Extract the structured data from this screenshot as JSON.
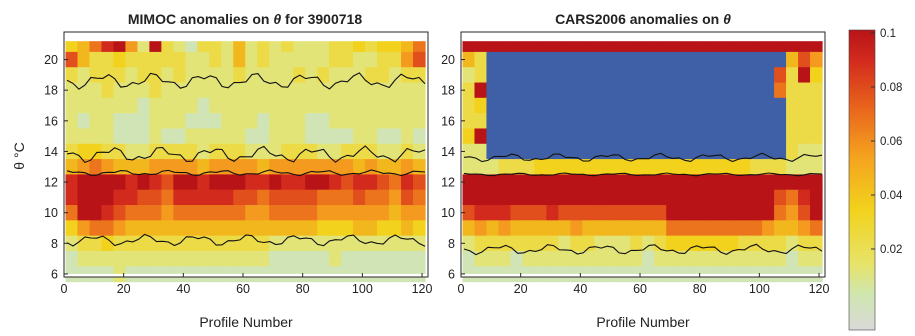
{
  "chart_data": [
    {
      "type": "heatmap",
      "title_prefix": "MIMOC anomalies on",
      "title_symbol": "θ",
      "title_suffix": "for 3900718",
      "xlabel": "Profile Number",
      "ylabel": "θ °C",
      "xlim": [
        0,
        122
      ],
      "ylim": [
        5.8,
        21.8
      ],
      "xticks": [
        "0",
        "20",
        "40",
        "60",
        "80",
        "100",
        "120"
      ],
      "yticks": [
        "6",
        "8",
        "10",
        "12",
        "14",
        "16",
        "18",
        "20"
      ],
      "field_rows_theta": [
        21,
        20,
        19,
        18,
        17,
        16,
        15,
        14,
        13,
        12,
        11,
        10,
        9,
        8,
        7,
        6
      ],
      "field_note": "values are anomaly magnitudes (color scale 0 to 0.1); rows listed from top (θ≈21) to bottom (θ≈6), columns every ~4 profiles",
      "field_values": [
        [
          0.04,
          0.05,
          0.07,
          0.09,
          0.1,
          0.06,
          0.02,
          0.1,
          0.03,
          0.02,
          0.01,
          0.03,
          0.03,
          0.02,
          0.05,
          0.02,
          0.03,
          0.02,
          0.03,
          0.02,
          0.02,
          0.02,
          0.03,
          0.03,
          0.04,
          0.03,
          0.04,
          0.04,
          0.05,
          0.07
        ],
        [
          0.08,
          0.05,
          0.03,
          0.03,
          0.04,
          0.03,
          0.03,
          0.03,
          0.03,
          0.03,
          0.02,
          0.02,
          0.03,
          0.02,
          0.05,
          0.02,
          0.03,
          0.02,
          0.02,
          0.02,
          0.02,
          0.02,
          0.03,
          0.03,
          0.02,
          0.02,
          0.03,
          0.03,
          0.06,
          0.08
        ],
        [
          0.03,
          0.02,
          0.03,
          0.03,
          0.03,
          0.02,
          0.03,
          0.03,
          0.02,
          0.03,
          0.02,
          0.02,
          0.02,
          0.02,
          0.03,
          0.02,
          0.02,
          0.02,
          0.02,
          0.03,
          0.02,
          0.03,
          0.02,
          0.02,
          0.02,
          0.03,
          0.03,
          0.02,
          0.03,
          0.03
        ],
        [
          0.02,
          0.02,
          0.02,
          0.03,
          0.02,
          0.02,
          0.02,
          0.03,
          0.02,
          0.02,
          0.02,
          0.02,
          0.02,
          0.02,
          0.02,
          0.02,
          0.02,
          0.02,
          0.02,
          0.02,
          0.02,
          0.02,
          0.02,
          0.02,
          0.02,
          0.02,
          0.02,
          0.02,
          0.02,
          0.02
        ],
        [
          0.02,
          0.02,
          0.02,
          0.02,
          0.02,
          0.02,
          0.01,
          0.02,
          0.02,
          0.02,
          0.02,
          0.01,
          0.02,
          0.02,
          0.02,
          0.02,
          0.02,
          0.02,
          0.02,
          0.02,
          0.02,
          0.02,
          0.02,
          0.02,
          0.02,
          0.02,
          0.02,
          0.02,
          0.02,
          0.02
        ],
        [
          0.02,
          0.01,
          0.02,
          0.02,
          0.01,
          0.01,
          0.01,
          0.02,
          0.02,
          0.02,
          0.01,
          0.01,
          0.01,
          0.02,
          0.02,
          0.02,
          0.01,
          0.02,
          0.02,
          0.02,
          0.01,
          0.01,
          0.02,
          0.02,
          0.02,
          0.02,
          0.02,
          0.02,
          0.02,
          0.02
        ],
        [
          0.02,
          0.02,
          0.02,
          0.02,
          0.01,
          0.01,
          0.01,
          0.02,
          0.01,
          0.01,
          0.02,
          0.02,
          0.02,
          0.02,
          0.02,
          0.01,
          0.01,
          0.02,
          0.02,
          0.02,
          0.01,
          0.01,
          0.01,
          0.01,
          0.02,
          0.02,
          0.01,
          0.01,
          0.02,
          0.01
        ],
        [
          0.03,
          0.04,
          0.04,
          0.03,
          0.03,
          0.02,
          0.02,
          0.03,
          0.03,
          0.03,
          0.03,
          0.02,
          0.03,
          0.03,
          0.03,
          0.02,
          0.02,
          0.02,
          0.03,
          0.03,
          0.03,
          0.02,
          0.02,
          0.03,
          0.03,
          0.03,
          0.02,
          0.02,
          0.03,
          0.02
        ],
        [
          0.05,
          0.06,
          0.07,
          0.06,
          0.05,
          0.05,
          0.05,
          0.06,
          0.06,
          0.06,
          0.06,
          0.05,
          0.06,
          0.06,
          0.06,
          0.06,
          0.05,
          0.06,
          0.06,
          0.06,
          0.06,
          0.06,
          0.06,
          0.06,
          0.05,
          0.06,
          0.05,
          0.05,
          0.06,
          0.05
        ],
        [
          0.09,
          0.1,
          0.1,
          0.1,
          0.1,
          0.09,
          0.1,
          0.09,
          0.08,
          0.1,
          0.1,
          0.09,
          0.1,
          0.1,
          0.1,
          0.09,
          0.09,
          0.1,
          0.09,
          0.09,
          0.1,
          0.1,
          0.09,
          0.08,
          0.09,
          0.09,
          0.08,
          0.07,
          0.09,
          0.08
        ],
        [
          0.09,
          0.1,
          0.1,
          0.1,
          0.09,
          0.09,
          0.08,
          0.08,
          0.07,
          0.09,
          0.09,
          0.09,
          0.09,
          0.09,
          0.08,
          0.08,
          0.07,
          0.08,
          0.08,
          0.08,
          0.08,
          0.07,
          0.07,
          0.07,
          0.08,
          0.07,
          0.07,
          0.06,
          0.08,
          0.07
        ],
        [
          0.07,
          0.1,
          0.1,
          0.09,
          0.08,
          0.07,
          0.07,
          0.07,
          0.06,
          0.07,
          0.07,
          0.07,
          0.07,
          0.07,
          0.07,
          0.06,
          0.06,
          0.07,
          0.07,
          0.07,
          0.07,
          0.06,
          0.06,
          0.06,
          0.06,
          0.06,
          0.06,
          0.05,
          0.06,
          0.06
        ],
        [
          0.04,
          0.06,
          0.07,
          0.07,
          0.06,
          0.05,
          0.05,
          0.05,
          0.05,
          0.05,
          0.05,
          0.05,
          0.05,
          0.05,
          0.05,
          0.05,
          0.05,
          0.05,
          0.05,
          0.05,
          0.05,
          0.04,
          0.04,
          0.04,
          0.05,
          0.05,
          0.04,
          0.04,
          0.05,
          0.04
        ],
        [
          0.02,
          0.03,
          0.03,
          0.04,
          0.03,
          0.03,
          0.03,
          0.03,
          0.03,
          0.03,
          0.03,
          0.03,
          0.03,
          0.03,
          0.03,
          0.03,
          0.03,
          0.02,
          0.02,
          0.02,
          0.02,
          0.02,
          0.02,
          0.02,
          0.02,
          0.02,
          0.02,
          0.02,
          0.02,
          0.02
        ],
        [
          0.01,
          0.02,
          0.02,
          0.02,
          0.02,
          0.02,
          0.02,
          0.02,
          0.02,
          0.02,
          0.02,
          0.02,
          0.02,
          0.02,
          0.02,
          0.02,
          0.02,
          0.01,
          0.01,
          0.01,
          0.01,
          0.01,
          0.02,
          0.01,
          0.01,
          0.01,
          0.01,
          0.01,
          0.01,
          0.01
        ],
        [
          0.01,
          0.01,
          0.01,
          0.01,
          0.02,
          0.01,
          0.01,
          0.01,
          0.01,
          0.01,
          0.01,
          0.01,
          0.01,
          0.01,
          0.01,
          0.01,
          0.01,
          0.01,
          0.01,
          0.01,
          0.01,
          0.01,
          0.01,
          0.01,
          0.01,
          0.01,
          0.01,
          0.01,
          0.01,
          0.01
        ]
      ]
    },
    {
      "type": "heatmap",
      "title_prefix": "CARS2006 anomalies on",
      "title_symbol": "θ",
      "title_suffix": "",
      "xlabel": "Profile Number",
      "xlim": [
        0,
        122
      ],
      "ylim": [
        5.8,
        21.8
      ],
      "xticks": [
        "0",
        "20",
        "40",
        "60",
        "80",
        "100",
        "120"
      ],
      "yticks": [
        "6",
        "8",
        "10",
        "12",
        "14",
        "16",
        "18",
        "20"
      ],
      "field_rows_theta": [
        21,
        20,
        19,
        18,
        17,
        16,
        15,
        14,
        13,
        12,
        11,
        10,
        9,
        8,
        7,
        6
      ],
      "field_note": "values are anomaly magnitudes (color scale 0 to 0.1); rows listed from top (θ≈21) to bottom (θ≈6), columns every ~4 profiles",
      "field_values": [
        [
          0.1,
          0.1,
          0.1,
          0.1,
          0.1,
          0.1,
          0.1,
          0.1,
          0.1,
          0.1,
          0.1,
          0.1,
          0.1,
          0.1,
          0.1,
          0.1,
          0.1,
          0.1,
          0.1,
          0.1,
          0.1,
          0.1,
          0.1,
          0.1,
          0.1,
          0.1,
          0.1,
          0.1,
          0.1,
          0.1
        ],
        [
          0.05,
          0.03,
          0.1,
          0.1,
          0.1,
          0.1,
          0.1,
          0.1,
          0.1,
          0.1,
          0.1,
          0.1,
          0.1,
          0.1,
          0.1,
          0.1,
          0.1,
          0.1,
          0.1,
          0.1,
          0.1,
          0.1,
          0.1,
          0.1,
          0.1,
          0.1,
          0.1,
          0.05,
          0.08,
          0.06
        ],
        [
          0.02,
          0.03,
          0.1,
          0.1,
          0.1,
          0.1,
          0.1,
          0.1,
          0.1,
          0.1,
          0.1,
          0.1,
          0.1,
          0.1,
          0.1,
          0.1,
          0.1,
          0.1,
          0.1,
          0.1,
          0.1,
          0.1,
          0.1,
          0.1,
          0.1,
          0.1,
          0.08,
          0.03,
          0.1,
          0.04
        ],
        [
          0.03,
          0.1,
          0.1,
          0.1,
          0.1,
          0.1,
          0.1,
          0.1,
          0.1,
          0.1,
          0.1,
          0.1,
          0.1,
          0.1,
          0.1,
          0.1,
          0.1,
          0.1,
          0.1,
          0.1,
          0.1,
          0.1,
          0.1,
          0.1,
          0.1,
          0.1,
          0.07,
          0.03,
          0.03,
          0.03
        ],
        [
          0.03,
          0.04,
          0.1,
          0.1,
          0.1,
          0.1,
          0.1,
          0.1,
          0.1,
          0.1,
          0.1,
          0.1,
          0.1,
          0.1,
          0.1,
          0.1,
          0.1,
          0.1,
          0.1,
          0.1,
          0.1,
          0.1,
          0.1,
          0.1,
          0.1,
          0.1,
          0.1,
          0.03,
          0.03,
          0.03
        ],
        [
          0.03,
          0.03,
          0.1,
          0.1,
          0.1,
          0.1,
          0.1,
          0.1,
          0.1,
          0.1,
          0.1,
          0.1,
          0.1,
          0.1,
          0.1,
          0.1,
          0.1,
          0.1,
          0.1,
          0.1,
          0.1,
          0.1,
          0.1,
          0.1,
          0.1,
          0.1,
          0.1,
          0.03,
          0.03,
          0.03
        ],
        [
          0.04,
          0.1,
          0.1,
          0.1,
          0.1,
          0.1,
          0.1,
          0.1,
          0.1,
          0.1,
          0.1,
          0.1,
          0.1,
          0.1,
          0.1,
          0.1,
          0.1,
          0.1,
          0.1,
          0.1,
          0.1,
          0.1,
          0.1,
          0.1,
          0.1,
          0.1,
          0.1,
          0.03,
          0.03,
          0.03
        ],
        [
          0.02,
          0.02,
          0.1,
          0.1,
          0.1,
          0.1,
          0.1,
          0.1,
          0.1,
          0.1,
          0.1,
          0.1,
          0.1,
          0.1,
          0.1,
          0.1,
          0.1,
          0.1,
          0.1,
          0.1,
          0.1,
          0.1,
          0.1,
          0.1,
          0.1,
          0.1,
          0.1,
          0.03,
          0.02,
          0.02
        ],
        [
          0.02,
          0.02,
          0.02,
          0.03,
          0.03,
          0.03,
          0.04,
          0.04,
          0.04,
          0.04,
          0.04,
          0.04,
          0.04,
          0.04,
          0.04,
          0.04,
          0.04,
          0.04,
          0.04,
          0.04,
          0.04,
          0.04,
          0.04,
          0.04,
          0.03,
          0.03,
          0.03,
          0.02,
          0.02,
          0.02
        ],
        [
          0.1,
          0.1,
          0.1,
          0.1,
          0.1,
          0.1,
          0.1,
          0.1,
          0.1,
          0.1,
          0.1,
          0.1,
          0.1,
          0.1,
          0.1,
          0.1,
          0.1,
          0.1,
          0.1,
          0.1,
          0.1,
          0.1,
          0.1,
          0.1,
          0.1,
          0.1,
          0.1,
          0.1,
          0.1,
          0.1
        ],
        [
          0.1,
          0.1,
          0.1,
          0.1,
          0.1,
          0.1,
          0.1,
          0.1,
          0.1,
          0.1,
          0.1,
          0.1,
          0.1,
          0.1,
          0.1,
          0.1,
          0.1,
          0.1,
          0.1,
          0.1,
          0.1,
          0.1,
          0.1,
          0.1,
          0.1,
          0.1,
          0.08,
          0.07,
          0.09,
          0.1
        ],
        [
          0.08,
          0.09,
          0.09,
          0.09,
          0.08,
          0.08,
          0.08,
          0.09,
          0.08,
          0.08,
          0.08,
          0.08,
          0.08,
          0.08,
          0.08,
          0.08,
          0.08,
          0.1,
          0.1,
          0.1,
          0.1,
          0.1,
          0.1,
          0.1,
          0.1,
          0.1,
          0.07,
          0.06,
          0.08,
          0.1
        ],
        [
          0.05,
          0.06,
          0.05,
          0.06,
          0.05,
          0.05,
          0.05,
          0.05,
          0.05,
          0.06,
          0.05,
          0.05,
          0.05,
          0.05,
          0.05,
          0.05,
          0.05,
          0.07,
          0.07,
          0.07,
          0.07,
          0.07,
          0.07,
          0.07,
          0.07,
          0.06,
          0.05,
          0.05,
          0.06,
          0.07
        ],
        [
          0.02,
          0.03,
          0.03,
          0.03,
          0.03,
          0.03,
          0.03,
          0.03,
          0.02,
          0.03,
          0.03,
          0.02,
          0.02,
          0.02,
          0.03,
          0.02,
          0.03,
          0.04,
          0.04,
          0.04,
          0.04,
          0.04,
          0.04,
          0.03,
          0.03,
          0.03,
          0.03,
          0.02,
          0.03,
          0.03
        ],
        [
          0.01,
          0.02,
          0.02,
          0.02,
          0.01,
          0.02,
          0.02,
          0.02,
          0.02,
          0.02,
          0.02,
          0.02,
          0.02,
          0.02,
          0.02,
          0.01,
          0.02,
          0.02,
          0.02,
          0.02,
          0.02,
          0.02,
          0.02,
          0.02,
          0.02,
          0.02,
          0.02,
          0.01,
          0.02,
          0.02
        ],
        [
          0.01,
          0.01,
          0.01,
          0.01,
          0.01,
          0.01,
          0.01,
          0.01,
          0.01,
          0.01,
          0.01,
          0.01,
          0.01,
          0.01,
          0.01,
          0.01,
          0.01,
          0.01,
          0.01,
          0.01,
          0.01,
          0.01,
          0.01,
          0.01,
          0.01,
          0.01,
          0.01,
          0.01,
          0.01,
          0.01
        ]
      ]
    }
  ],
  "colorbar": {
    "ticks": [
      "0.1",
      "0.08",
      "0.06",
      "0.04",
      "0.02"
    ],
    "range": [
      0,
      0.1
    ]
  },
  "colors": {
    "low": "#d9d9d9",
    "mid": "#f2d21c",
    "high": "#b81418",
    "saturated_blue": "#3f60a6",
    "contour": "#111111"
  }
}
